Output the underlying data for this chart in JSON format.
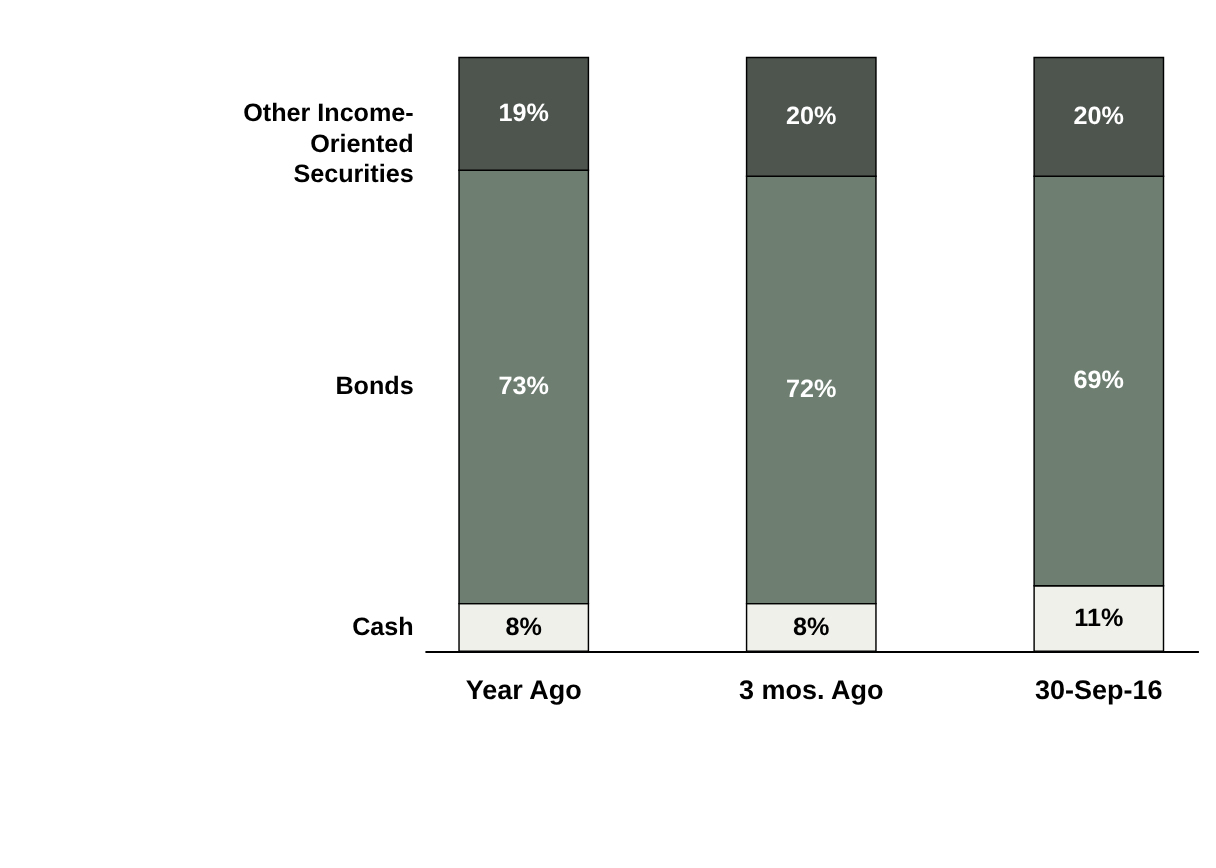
{
  "chart_data": {
    "type": "bar",
    "stacked": true,
    "categories": [
      "Year Ago",
      "3 mos. Ago",
      "30-Sep-16"
    ],
    "series": [
      {
        "name": "Cash",
        "color": "#eef0e9",
        "values": [
          8,
          8,
          11
        ],
        "value_labels": [
          "8%",
          "8%",
          "11%"
        ]
      },
      {
        "name": "Bonds",
        "color": "#6e7e71",
        "values": [
          73,
          72,
          69
        ],
        "value_labels": [
          "73%",
          "72%",
          "69%"
        ]
      },
      {
        "name": "Other Income-Oriented Securities",
        "color": "#4e554f",
        "values": [
          19,
          20,
          20
        ],
        "value_labels": [
          "19%",
          "20%",
          "20%"
        ]
      }
    ]
  }
}
